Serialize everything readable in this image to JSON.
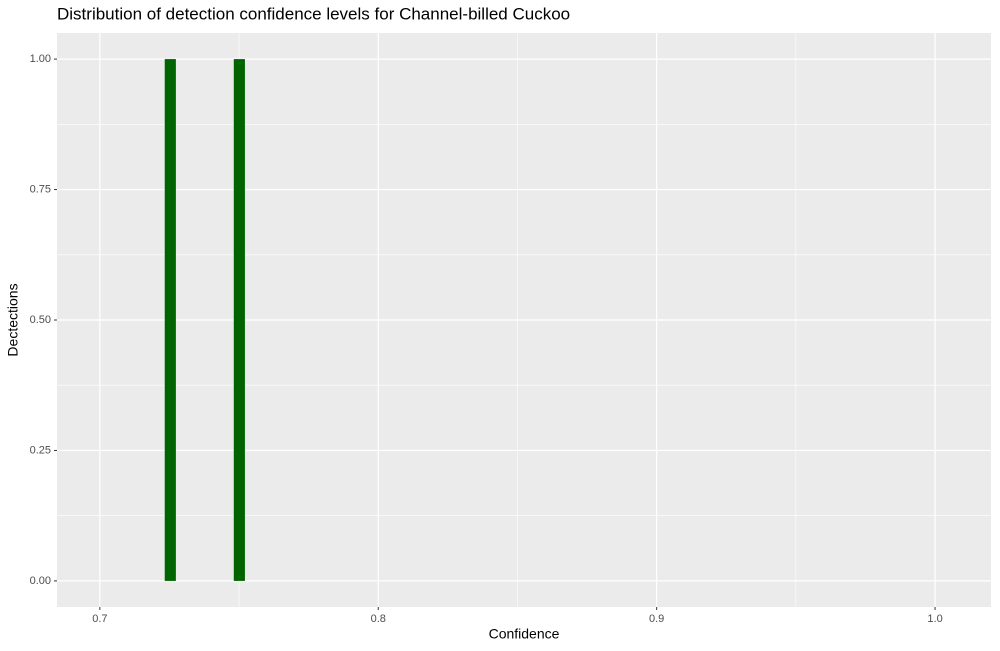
{
  "chart_data": {
    "type": "histogram",
    "title": "Distribution of detection confidence levels for Channel-billed Cuckoo",
    "x_label": "Confidence",
    "y_label": "Dectections",
    "bins": [
      0.7233,
      0.7273,
      0.7481,
      0.7521
    ],
    "values": [
      1,
      0,
      1
    ],
    "color": "#006400",
    "xlim": [
      0.6846,
      1.0201
    ],
    "ylim": [
      -0.05,
      1.05
    ],
    "xticks": [
      0.7,
      0.8,
      0.9,
      {
        "value": 1,
        "label": "1.0"
      }
    ],
    "yticks": [
      {
        "value": 0,
        "label": "0.00"
      },
      {
        "value": 0.25,
        "label": "0.25"
      },
      {
        "value": 0.5,
        "label": "0.50"
      },
      {
        "value": 0.75,
        "label": "0.75"
      },
      {
        "value": 1,
        "label": "1.00"
      }
    ],
    "grid": true
  }
}
